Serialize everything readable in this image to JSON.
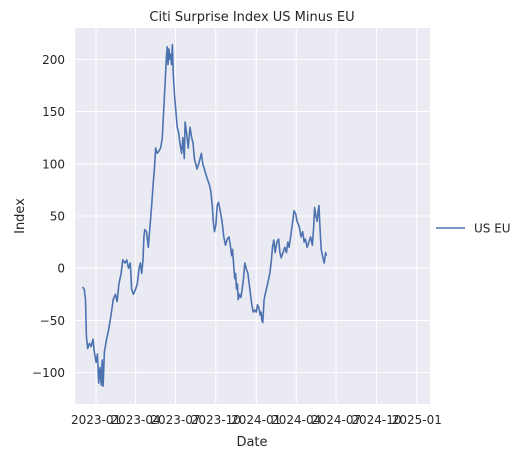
{
  "chart_data": {
    "type": "line",
    "title": "Citi Surprise Index US Minus EU",
    "xlabel": "Date",
    "ylabel": "Index",
    "x_range": [
      "2022-11-14",
      "2025-01-31"
    ],
    "ylim": [
      -130,
      230
    ],
    "y_ticks": [
      -100,
      -50,
      0,
      50,
      100,
      150,
      200
    ],
    "x_ticks": [
      {
        "date": "2023-01-01",
        "label": "2023-01"
      },
      {
        "date": "2023-04-01",
        "label": "2023-04"
      },
      {
        "date": "2023-07-01",
        "label": "2023-07"
      },
      {
        "date": "2023-10-01",
        "label": "2023-10"
      },
      {
        "date": "2024-01-01",
        "label": "2024-01"
      },
      {
        "date": "2024-04-01",
        "label": "2024-04"
      },
      {
        "date": "2024-07-01",
        "label": "2024-07"
      },
      {
        "date": "2024-10-01",
        "label": "2024-10"
      },
      {
        "date": "2025-01-01",
        "label": "2025-01"
      }
    ],
    "grid": true,
    "legend_position": "right",
    "series": [
      {
        "name": "US EU",
        "color": "#4c72b0",
        "points": [
          [
            "2022-12-01",
            -18
          ],
          [
            "2022-12-05",
            -20
          ],
          [
            "2022-12-08",
            -30
          ],
          [
            "2022-12-10",
            -65
          ],
          [
            "2022-12-13",
            -77
          ],
          [
            "2022-12-17",
            -72
          ],
          [
            "2022-12-21",
            -75
          ],
          [
            "2022-12-25",
            -68
          ],
          [
            "2022-12-28",
            -80
          ],
          [
            "2023-01-01",
            -90
          ],
          [
            "2023-01-04",
            -82
          ],
          [
            "2023-01-07",
            -110
          ],
          [
            "2023-01-10",
            -95
          ],
          [
            "2023-01-13",
            -112
          ],
          [
            "2023-01-15",
            -88
          ],
          [
            "2023-01-17",
            -113
          ],
          [
            "2023-01-20",
            -80
          ],
          [
            "2023-01-25",
            -68
          ],
          [
            "2023-01-30",
            -58
          ],
          [
            "2023-02-04",
            -45
          ],
          [
            "2023-02-09",
            -30
          ],
          [
            "2023-02-14",
            -25
          ],
          [
            "2023-02-18",
            -32
          ],
          [
            "2023-02-22",
            -15
          ],
          [
            "2023-02-27",
            -5
          ],
          [
            "2023-03-03",
            8
          ],
          [
            "2023-03-08",
            5
          ],
          [
            "2023-03-12",
            8
          ],
          [
            "2023-03-16",
            0
          ],
          [
            "2023-03-20",
            5
          ],
          [
            "2023-03-23",
            -20
          ],
          [
            "2023-03-27",
            -25
          ],
          [
            "2023-04-01",
            -20
          ],
          [
            "2023-04-05",
            -15
          ],
          [
            "2023-04-09",
            0
          ],
          [
            "2023-04-12",
            5
          ],
          [
            "2023-04-15",
            -5
          ],
          [
            "2023-04-18",
            8
          ],
          [
            "2023-04-20",
            30
          ],
          [
            "2023-04-22",
            37
          ],
          [
            "2023-04-26",
            35
          ],
          [
            "2023-04-30",
            20
          ],
          [
            "2023-05-04",
            40
          ],
          [
            "2023-05-08",
            62
          ],
          [
            "2023-05-11",
            80
          ],
          [
            "2023-05-14",
            95
          ],
          [
            "2023-05-17",
            115
          ],
          [
            "2023-05-20",
            110
          ],
          [
            "2023-05-24",
            112
          ],
          [
            "2023-05-28",
            115
          ],
          [
            "2023-06-01",
            125
          ],
          [
            "2023-06-04",
            150
          ],
          [
            "2023-06-07",
            175
          ],
          [
            "2023-06-10",
            200
          ],
          [
            "2023-06-12",
            212
          ],
          [
            "2023-06-14",
            195
          ],
          [
            "2023-06-16",
            210
          ],
          [
            "2023-06-18",
            200
          ],
          [
            "2023-06-20",
            205
          ],
          [
            "2023-06-22",
            195
          ],
          [
            "2023-06-24",
            214
          ],
          [
            "2023-06-26",
            185
          ],
          [
            "2023-06-29",
            165
          ],
          [
            "2023-07-02",
            150
          ],
          [
            "2023-07-05",
            135
          ],
          [
            "2023-07-08",
            130
          ],
          [
            "2023-07-11",
            120
          ],
          [
            "2023-07-15",
            110
          ],
          [
            "2023-07-18",
            125
          ],
          [
            "2023-07-21",
            105
          ],
          [
            "2023-07-23",
            140
          ],
          [
            "2023-07-26",
            130
          ],
          [
            "2023-07-30",
            115
          ],
          [
            "2023-08-03",
            135
          ],
          [
            "2023-08-07",
            125
          ],
          [
            "2023-08-10",
            120
          ],
          [
            "2023-08-13",
            105
          ],
          [
            "2023-08-16",
            100
          ],
          [
            "2023-08-19",
            95
          ],
          [
            "2023-08-23",
            100
          ],
          [
            "2023-08-26",
            105
          ],
          [
            "2023-08-29",
            110
          ],
          [
            "2023-09-01",
            100
          ],
          [
            "2023-09-05",
            95
          ],
          [
            "2023-09-08",
            90
          ],
          [
            "2023-09-12",
            85
          ],
          [
            "2023-09-16",
            80
          ],
          [
            "2023-09-19",
            75
          ],
          [
            "2023-09-23",
            60
          ],
          [
            "2023-09-25",
            45
          ],
          [
            "2023-09-28",
            35
          ],
          [
            "2023-10-01",
            42
          ],
          [
            "2023-10-04",
            60
          ],
          [
            "2023-10-07",
            63
          ],
          [
            "2023-10-11",
            55
          ],
          [
            "2023-10-15",
            45
          ],
          [
            "2023-10-19",
            30
          ],
          [
            "2023-10-23",
            22
          ],
          [
            "2023-10-27",
            28
          ],
          [
            "2023-10-31",
            30
          ],
          [
            "2023-11-03",
            22
          ],
          [
            "2023-11-06",
            12
          ],
          [
            "2023-11-08",
            18
          ],
          [
            "2023-11-11",
            0
          ],
          [
            "2023-11-13",
            -10
          ],
          [
            "2023-11-15",
            -5
          ],
          [
            "2023-11-17",
            -20
          ],
          [
            "2023-11-19",
            -15
          ],
          [
            "2023-11-21",
            -30
          ],
          [
            "2023-11-24",
            -25
          ],
          [
            "2023-11-27",
            -28
          ],
          [
            "2023-11-30",
            -20
          ],
          [
            "2023-12-03",
            -10
          ],
          [
            "2023-12-06",
            5
          ],
          [
            "2023-12-09",
            0
          ],
          [
            "2023-12-13",
            -5
          ],
          [
            "2023-12-16",
            -15
          ],
          [
            "2023-12-19",
            -25
          ],
          [
            "2023-12-22",
            -35
          ],
          [
            "2023-12-25",
            -42
          ],
          [
            "2023-12-28",
            -40
          ],
          [
            "2024-01-01",
            -42
          ],
          [
            "2024-01-04",
            -35
          ],
          [
            "2024-01-07",
            -38
          ],
          [
            "2024-01-10",
            -45
          ],
          [
            "2024-01-12",
            -42
          ],
          [
            "2024-01-14",
            -50
          ],
          [
            "2024-01-16",
            -52
          ],
          [
            "2024-01-19",
            -30
          ],
          [
            "2024-01-23",
            -22
          ],
          [
            "2024-01-27",
            -15
          ],
          [
            "2024-02-01",
            -5
          ],
          [
            "2024-02-04",
            5
          ],
          [
            "2024-02-07",
            20
          ],
          [
            "2024-02-10",
            27
          ],
          [
            "2024-02-13",
            15
          ],
          [
            "2024-02-17",
            25
          ],
          [
            "2024-02-21",
            28
          ],
          [
            "2024-02-24",
            15
          ],
          [
            "2024-02-27",
            10
          ],
          [
            "2024-03-02",
            15
          ],
          [
            "2024-03-06",
            20
          ],
          [
            "2024-03-10",
            15
          ],
          [
            "2024-03-13",
            25
          ],
          [
            "2024-03-16",
            20
          ],
          [
            "2024-03-20",
            32
          ],
          [
            "2024-03-24",
            45
          ],
          [
            "2024-03-27",
            55
          ],
          [
            "2024-03-31",
            52
          ],
          [
            "2024-04-03",
            45
          ],
          [
            "2024-04-06",
            42
          ],
          [
            "2024-04-09",
            38
          ],
          [
            "2024-04-12",
            30
          ],
          [
            "2024-04-16",
            35
          ],
          [
            "2024-04-19",
            25
          ],
          [
            "2024-04-22",
            28
          ],
          [
            "2024-04-26",
            20
          ],
          [
            "2024-04-30",
            25
          ],
          [
            "2024-05-04",
            30
          ],
          [
            "2024-05-08",
            22
          ],
          [
            "2024-05-11",
            40
          ],
          [
            "2024-05-13",
            58
          ],
          [
            "2024-05-16",
            50
          ],
          [
            "2024-05-19",
            45
          ],
          [
            "2024-05-21",
            55
          ],
          [
            "2024-05-23",
            60
          ],
          [
            "2024-05-25",
            40
          ],
          [
            "2024-05-28",
            18
          ],
          [
            "2024-06-01",
            10
          ],
          [
            "2024-06-04",
            5
          ],
          [
            "2024-06-07",
            15
          ],
          [
            "2024-06-09",
            12
          ]
        ]
      }
    ]
  }
}
